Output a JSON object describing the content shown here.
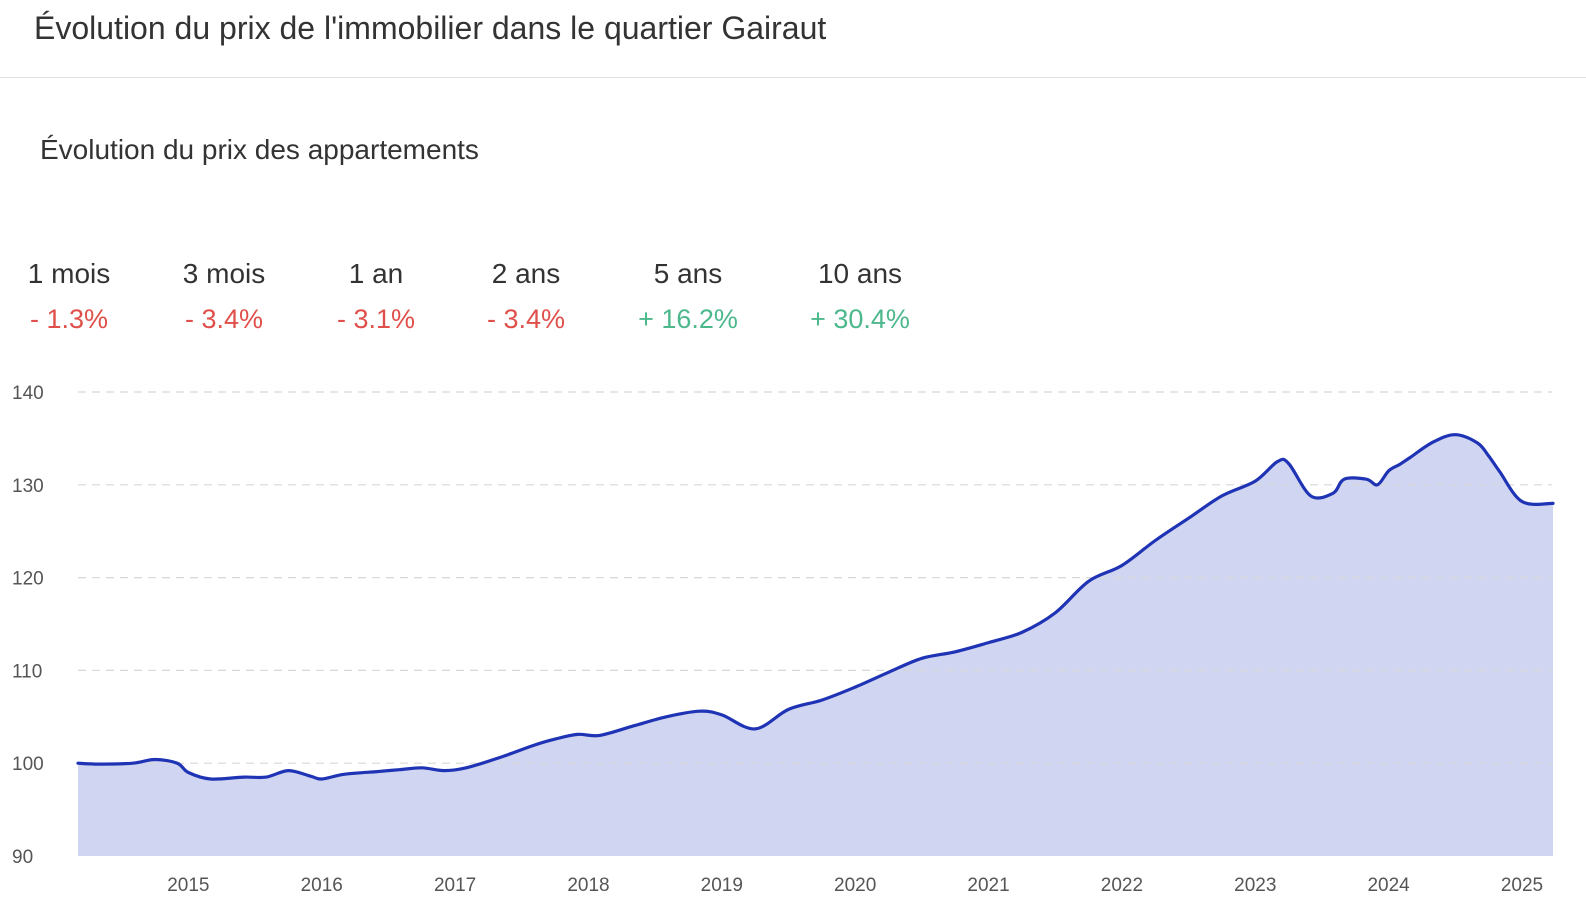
{
  "header": {
    "title": "Évolution du prix de l'immobilier dans le quartier Gairaut"
  },
  "section": {
    "title": "Évolution du prix des appartements"
  },
  "stats": [
    {
      "label": "1 mois",
      "value": "- 1.3%",
      "trend": "negative"
    },
    {
      "label": "3 mois",
      "value": "- 3.4%",
      "trend": "negative"
    },
    {
      "label": "1 an",
      "value": "- 3.1%",
      "trend": "negative"
    },
    {
      "label": "2 ans",
      "value": "- 3.4%",
      "trend": "negative"
    },
    {
      "label": "5 ans",
      "value": "+ 16.2%",
      "trend": "positive"
    },
    {
      "label": "10 ans",
      "value": "+ 30.4%",
      "trend": "positive"
    }
  ],
  "colors": {
    "negative": "#e0504a",
    "positive": "#4cb88c",
    "line": "#1f33b5",
    "area": "#d0d5f1",
    "grid": "#d8d8d8"
  },
  "chart_data": {
    "type": "area",
    "title": "",
    "xlabel": "",
    "ylabel": "",
    "ylim": [
      90,
      140
    ],
    "y_ticks": [
      90,
      100,
      110,
      120,
      130,
      140
    ],
    "x_ticks": [
      "2015",
      "2016",
      "2017",
      "2018",
      "2019",
      "2020",
      "2021",
      "2022",
      "2023",
      "2024",
      "2025"
    ],
    "grid": "horizontal dashed",
    "legend": "none",
    "series": [
      {
        "x": [
          "2014-02",
          "2014-05",
          "2014-08",
          "2014-10",
          "2014-12",
          "2015-01",
          "2015-03",
          "2015-06",
          "2015-08",
          "2015-10",
          "2015-12",
          "2016-01",
          "2016-03",
          "2016-06",
          "2016-08",
          "2016-10",
          "2016-12",
          "2017-02",
          "2017-05",
          "2017-08",
          "2017-10",
          "2017-12",
          "2018-02",
          "2018-05",
          "2018-08",
          "2018-11",
          "2019-01",
          "2019-04",
          "2019-07",
          "2019-10",
          "2020-01",
          "2020-04",
          "2020-07",
          "2020-10",
          "2021-01",
          "2021-04",
          "2021-07",
          "2021-10",
          "2022-01",
          "2022-04",
          "2022-07",
          "2022-10",
          "2023-01",
          "2023-03",
          "2023-04",
          "2023-06",
          "2023-08",
          "2023-09",
          "2023-11",
          "2023-12",
          "2024-01",
          "2024-02",
          "2024-03",
          "2024-05",
          "2024-07",
          "2024-09",
          "2024-10",
          "2024-11",
          "2025-01",
          "2025-04"
        ],
        "values": [
          100.0,
          99.9,
          100.0,
          100.4,
          100.0,
          99.0,
          98.3,
          98.5,
          98.5,
          99.2,
          98.6,
          98.3,
          98.8,
          99.1,
          99.3,
          99.5,
          99.2,
          99.5,
          100.6,
          101.9,
          102.6,
          103.1,
          103.0,
          104.0,
          105.0,
          105.6,
          105.2,
          103.7,
          105.8,
          106.8,
          108.2,
          109.8,
          111.3,
          112.0,
          113.0,
          114.1,
          116.2,
          119.6,
          121.3,
          124.0,
          126.4,
          128.8,
          130.4,
          132.5,
          132.3,
          128.8,
          129.1,
          130.6,
          130.6,
          130.0,
          131.5,
          132.2,
          133.0,
          134.6,
          135.4,
          134.5,
          133.1,
          131.4,
          128.2,
          128.0
        ]
      }
    ]
  }
}
